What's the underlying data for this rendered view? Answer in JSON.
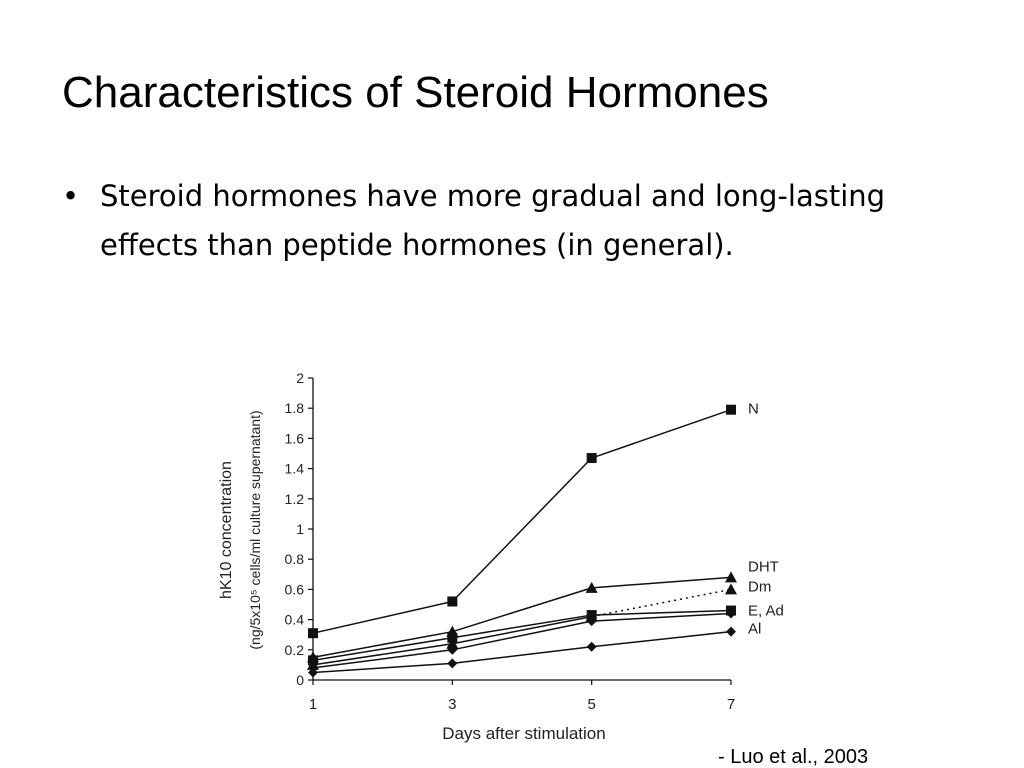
{
  "slide": {
    "title": "Characteristics of Steroid Hormones",
    "bullet_marker": "•",
    "bullet_text": "Steroid hormones have more gradual and long-lasting effects than peptide hormones (in general).",
    "citation": "- Luo et al., 2003"
  },
  "chart_data": {
    "type": "line",
    "title": "",
    "xlabel": "Days after stimulation",
    "ylabel_line1": "hK10 concentration",
    "ylabel_line2": "(ng/5x10⁵ cells/ml culture supernatant)",
    "x": [
      1,
      3,
      5,
      7
    ],
    "xticks": [
      "1",
      "3",
      "5",
      "7"
    ],
    "yticks": [
      "0",
      "0.2",
      "0.4",
      "0.6",
      "0.8",
      "1",
      "1.2",
      "1.4",
      "1.6",
      "1.8",
      "2"
    ],
    "ylim": [
      0,
      2
    ],
    "xlim": [
      1,
      7
    ],
    "grid": false,
    "series": [
      {
        "name": "N",
        "values": [
          0.31,
          0.52,
          1.47,
          1.79
        ],
        "marker": "square",
        "dashed_last": false
      },
      {
        "name": "DHT",
        "values": [
          0.15,
          0.32,
          0.61,
          0.68
        ],
        "marker": "triangle",
        "dashed_last": false
      },
      {
        "name": "Dm",
        "values": [
          0.1,
          0.24,
          0.42,
          0.6
        ],
        "marker": "triangle",
        "dashed_last": true
      },
      {
        "name": "E, Ad",
        "values": [
          0.13,
          0.28,
          0.43,
          0.46
        ],
        "marker": "square",
        "dashed_last": false
      },
      {
        "name": "Al",
        "values": [
          0.05,
          0.11,
          0.22,
          0.32
        ],
        "marker": "diamond",
        "dashed_last": false
      },
      {
        "name": "",
        "values": [
          0.08,
          0.2,
          0.39,
          0.44
        ],
        "marker": "diamond",
        "dashed_last": false
      }
    ],
    "legend_position": "right-of-lines",
    "line_color": "#111111"
  }
}
